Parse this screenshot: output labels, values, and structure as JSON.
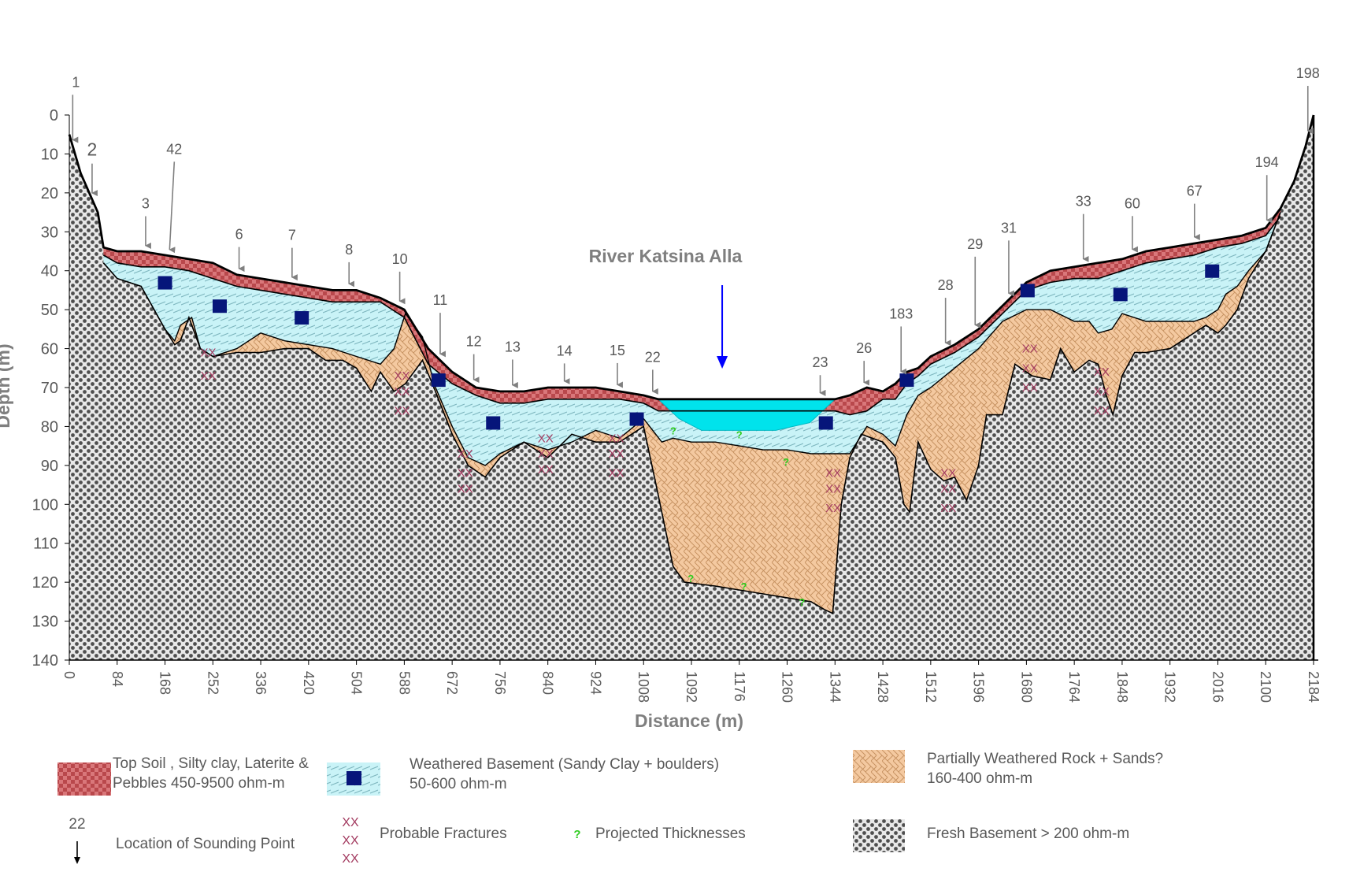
{
  "chart_data": {
    "type": "cross-section",
    "title": "River Katsina Alla",
    "xlabel": "Distance (m)",
    "ylabel": "Depth (m)",
    "xlim": [
      0,
      2184
    ],
    "ylim": [
      140,
      0
    ],
    "x_ticks": [
      "0",
      "84",
      "168",
      "252",
      "336",
      "420",
      "504",
      "588",
      "672",
      "756",
      "840",
      "924",
      "1008",
      "1092",
      "1176",
      "1260",
      "1344",
      "1428",
      "1512",
      "1596",
      "1680",
      "1764",
      "1848",
      "1932",
      "2016",
      "2100",
      "2184"
    ],
    "y_ticks": [
      "0",
      "10",
      "20",
      "30",
      "40",
      "50",
      "60",
      "70",
      "80",
      "90",
      "100",
      "110",
      "120",
      "130",
      "140"
    ],
    "layers": {
      "ground_surface": [
        [
          0,
          5
        ],
        [
          20,
          15
        ],
        [
          50,
          25
        ],
        [
          60,
          34
        ],
        [
          84,
          35
        ],
        [
          126,
          35
        ],
        [
          168,
          36
        ],
        [
          210,
          37
        ],
        [
          252,
          38
        ],
        [
          294,
          41
        ],
        [
          336,
          42
        ],
        [
          378,
          43
        ],
        [
          420,
          44
        ],
        [
          462,
          45
        ],
        [
          504,
          45
        ],
        [
          546,
          47
        ],
        [
          588,
          50
        ],
        [
          630,
          60
        ],
        [
          672,
          66
        ],
        [
          714,
          70
        ],
        [
          756,
          71
        ],
        [
          798,
          71
        ],
        [
          840,
          70
        ],
        [
          882,
          70
        ],
        [
          924,
          70
        ],
        [
          966,
          71
        ],
        [
          1008,
          72
        ],
        [
          1034,
          73
        ],
        [
          1344,
          73
        ],
        [
          1370,
          72
        ],
        [
          1400,
          70
        ],
        [
          1428,
          71
        ],
        [
          1450,
          69
        ],
        [
          1470,
          66
        ],
        [
          1490,
          65
        ],
        [
          1512,
          62
        ],
        [
          1554,
          59
        ],
        [
          1596,
          55
        ],
        [
          1638,
          49
        ],
        [
          1680,
          43
        ],
        [
          1722,
          40
        ],
        [
          1764,
          39
        ],
        [
          1806,
          38
        ],
        [
          1848,
          37
        ],
        [
          1890,
          35
        ],
        [
          1932,
          34
        ],
        [
          1974,
          33
        ],
        [
          2016,
          32
        ],
        [
          2058,
          31
        ],
        [
          2100,
          29
        ],
        [
          2126,
          24
        ],
        [
          2150,
          17
        ],
        [
          2170,
          8
        ],
        [
          2184,
          0
        ]
      ],
      "top_soil_base": [
        [
          60,
          36
        ],
        [
          84,
          38
        ],
        [
          126,
          39
        ],
        [
          168,
          39
        ],
        [
          210,
          40
        ],
        [
          252,
          42
        ],
        [
          294,
          44
        ],
        [
          336,
          45
        ],
        [
          378,
          46
        ],
        [
          420,
          47
        ],
        [
          462,
          48
        ],
        [
          504,
          48
        ],
        [
          546,
          48
        ],
        [
          588,
          52
        ],
        [
          630,
          64
        ],
        [
          672,
          69
        ],
        [
          714,
          72
        ],
        [
          756,
          74
        ],
        [
          798,
          74
        ],
        [
          840,
          73
        ],
        [
          882,
          73
        ],
        [
          924,
          73
        ],
        [
          966,
          73
        ],
        [
          1008,
          74
        ],
        [
          1034,
          76
        ],
        [
          1344,
          76
        ],
        [
          1370,
          77
        ],
        [
          1400,
          76
        ],
        [
          1428,
          73
        ],
        [
          1450,
          73
        ],
        [
          1470,
          69
        ],
        [
          1490,
          67
        ],
        [
          1512,
          64
        ],
        [
          1554,
          61
        ],
        [
          1596,
          57
        ],
        [
          1638,
          51
        ],
        [
          1680,
          45
        ],
        [
          1722,
          43
        ],
        [
          1764,
          42
        ],
        [
          1806,
          42
        ],
        [
          1848,
          40
        ],
        [
          1890,
          38
        ],
        [
          1932,
          37
        ],
        [
          1974,
          36
        ],
        [
          2016,
          34
        ],
        [
          2058,
          33
        ],
        [
          2100,
          31
        ],
        [
          2126,
          26
        ]
      ],
      "weathered_basement_base": [
        [
          60,
          38
        ],
        [
          84,
          42
        ],
        [
          126,
          44
        ],
        [
          168,
          55
        ],
        [
          185,
          58
        ],
        [
          195,
          54
        ],
        [
          215,
          52
        ],
        [
          230,
          60
        ],
        [
          252,
          62
        ],
        [
          294,
          60
        ],
        [
          336,
          56
        ],
        [
          378,
          58
        ],
        [
          420,
          59
        ],
        [
          462,
          60
        ],
        [
          504,
          62
        ],
        [
          546,
          64
        ],
        [
          570,
          60
        ],
        [
          590,
          51
        ],
        [
          620,
          57
        ],
        [
          640,
          69
        ],
        [
          672,
          80
        ],
        [
          700,
          88
        ],
        [
          730,
          90
        ],
        [
          756,
          87
        ],
        [
          798,
          84
        ],
        [
          840,
          86
        ],
        [
          882,
          84
        ],
        [
          924,
          81
        ],
        [
          966,
          83
        ],
        [
          1008,
          78
        ],
        [
          1040,
          84
        ],
        [
          1060,
          83
        ],
        [
          1092,
          84
        ],
        [
          1134,
          84
        ],
        [
          1176,
          85
        ],
        [
          1218,
          86
        ],
        [
          1260,
          86
        ],
        [
          1302,
          87
        ],
        [
          1344,
          87
        ],
        [
          1370,
          87
        ],
        [
          1400,
          80
        ],
        [
          1428,
          82
        ],
        [
          1450,
          85
        ],
        [
          1470,
          77
        ],
        [
          1490,
          72
        ],
        [
          1512,
          70
        ],
        [
          1554,
          65
        ],
        [
          1596,
          60
        ],
        [
          1638,
          53
        ],
        [
          1680,
          50
        ],
        [
          1722,
          50
        ],
        [
          1750,
          52
        ],
        [
          1764,
          53
        ],
        [
          1790,
          53
        ],
        [
          1806,
          56
        ],
        [
          1830,
          55
        ],
        [
          1848,
          51
        ],
        [
          1890,
          53
        ],
        [
          1932,
          53
        ],
        [
          1974,
          53
        ],
        [
          1995,
          52
        ],
        [
          2016,
          50
        ],
        [
          2030,
          46
        ],
        [
          2050,
          44
        ],
        [
          2070,
          40
        ],
        [
          2100,
          35
        ],
        [
          2126,
          25
        ]
      ],
      "partially_weathered_base": [
        [
          60,
          38
        ],
        [
          84,
          42
        ],
        [
          126,
          44
        ],
        [
          168,
          55
        ],
        [
          185,
          59
        ],
        [
          195,
          58
        ],
        [
          210,
          52
        ],
        [
          230,
          60
        ],
        [
          252,
          62
        ],
        [
          294,
          61
        ],
        [
          336,
          61
        ],
        [
          378,
          60
        ],
        [
          420,
          60
        ],
        [
          450,
          63
        ],
        [
          480,
          63
        ],
        [
          504,
          65
        ],
        [
          530,
          71
        ],
        [
          546,
          66
        ],
        [
          570,
          71
        ],
        [
          590,
          69
        ],
        [
          620,
          63
        ],
        [
          640,
          70
        ],
        [
          672,
          82
        ],
        [
          700,
          90
        ],
        [
          730,
          93
        ],
        [
          756,
          88
        ],
        [
          798,
          84
        ],
        [
          840,
          88
        ],
        [
          882,
          82
        ],
        [
          924,
          84
        ],
        [
          966,
          84
        ],
        [
          1008,
          80
        ],
        [
          1030,
          95
        ],
        [
          1060,
          116
        ],
        [
          1080,
          120
        ],
        [
          1134,
          121
        ],
        [
          1176,
          122
        ],
        [
          1218,
          123
        ],
        [
          1260,
          124
        ],
        [
          1302,
          125
        ],
        [
          1325,
          127
        ],
        [
          1340,
          128
        ],
        [
          1355,
          100
        ],
        [
          1370,
          88
        ],
        [
          1390,
          82
        ],
        [
          1428,
          84
        ],
        [
          1450,
          88
        ],
        [
          1465,
          100
        ],
        [
          1475,
          102
        ],
        [
          1490,
          84
        ],
        [
          1512,
          91
        ],
        [
          1535,
          94
        ],
        [
          1554,
          93
        ],
        [
          1575,
          99
        ],
        [
          1596,
          90
        ],
        [
          1610,
          77
        ],
        [
          1638,
          77
        ],
        [
          1660,
          64
        ],
        [
          1690,
          67
        ],
        [
          1722,
          68
        ],
        [
          1740,
          60
        ],
        [
          1764,
          66
        ],
        [
          1790,
          63
        ],
        [
          1806,
          64
        ],
        [
          1820,
          72
        ],
        [
          1832,
          77
        ],
        [
          1848,
          67
        ],
        [
          1870,
          61
        ],
        [
          1890,
          61
        ],
        [
          1932,
          60
        ],
        [
          1974,
          56
        ],
        [
          1995,
          54
        ],
        [
          2016,
          56
        ],
        [
          2030,
          54
        ],
        [
          2050,
          50
        ],
        [
          2070,
          42
        ],
        [
          2100,
          35
        ],
        [
          2126,
          25
        ]
      ],
      "river_water": [
        [
          1034,
          73
        ],
        [
          1070,
          78
        ],
        [
          1110,
          81
        ],
        [
          1176,
          81
        ],
        [
          1240,
          81
        ],
        [
          1300,
          79
        ],
        [
          1344,
          73
        ]
      ]
    },
    "river_marker_x": 1146,
    "sounding_points": [
      {
        "label": "1",
        "x": 6
      },
      {
        "label": "2",
        "x": 40
      },
      {
        "label": "3",
        "x": 134
      },
      {
        "label": "42",
        "x": 176
      },
      {
        "label": "6",
        "x": 298
      },
      {
        "label": "7",
        "x": 391
      },
      {
        "label": "8",
        "x": 491
      },
      {
        "label": "10",
        "x": 580
      },
      {
        "label": "11",
        "x": 651
      },
      {
        "label": "12",
        "x": 710
      },
      {
        "label": "13",
        "x": 778
      },
      {
        "label": "14",
        "x": 869
      },
      {
        "label": "15",
        "x": 962
      },
      {
        "label": "22",
        "x": 1024
      },
      {
        "label": "23",
        "x": 1318
      },
      {
        "label": "26",
        "x": 1395
      },
      {
        "label": "183",
        "x": 1460
      },
      {
        "label": "28",
        "x": 1538
      },
      {
        "label": "29",
        "x": 1590
      },
      {
        "label": "31",
        "x": 1649
      },
      {
        "label": "33",
        "x": 1780
      },
      {
        "label": "60",
        "x": 1866
      },
      {
        "label": "67",
        "x": 1975
      },
      {
        "label": "194",
        "x": 2102
      },
      {
        "label": "198",
        "x": 2174
      }
    ],
    "boulders": [
      [
        168,
        43
      ],
      [
        264,
        49
      ],
      [
        408,
        52
      ],
      [
        648,
        68
      ],
      [
        744,
        79
      ],
      [
        996,
        78
      ],
      [
        1328,
        79
      ],
      [
        1470,
        68
      ],
      [
        1682,
        45
      ],
      [
        1845,
        46
      ],
      [
        2006,
        40
      ]
    ],
    "fractures": [
      [
        244,
        61
      ],
      [
        244,
        67
      ],
      [
        584,
        67
      ],
      [
        584,
        71
      ],
      [
        584,
        76
      ],
      [
        695,
        87
      ],
      [
        695,
        92
      ],
      [
        695,
        96
      ],
      [
        836,
        83
      ],
      [
        836,
        87
      ],
      [
        836,
        91
      ],
      [
        960,
        83
      ],
      [
        960,
        87
      ],
      [
        960,
        92
      ],
      [
        1341,
        92
      ],
      [
        1341,
        96
      ],
      [
        1341,
        101
      ],
      [
        1543,
        92
      ],
      [
        1543,
        96
      ],
      [
        1543,
        101
      ],
      [
        1686,
        60
      ],
      [
        1686,
        65
      ],
      [
        1686,
        70
      ],
      [
        1812,
        66
      ],
      [
        1812,
        71
      ],
      [
        1812,
        76
      ]
    ],
    "projected": [
      [
        1060,
        81
      ],
      [
        1176,
        82
      ],
      [
        1258,
        89
      ],
      [
        1091,
        119
      ],
      [
        1184,
        121
      ],
      [
        1286,
        125
      ]
    ]
  },
  "legend": {
    "top_soil": "Top Soil , Silty clay, Laterite &\nPebbles 450-9500 ohm-m",
    "weathered": "Weathered Basement  (Sandy Clay + boulders)\n50-600 ohm-m",
    "partially": "Partially  Weathered Rock + Sands?\n160-400 ohm-m",
    "sounding_number": "22",
    "sounding_label": "Location of Sounding Point",
    "fracture_symbol": "XX",
    "fracture_label": "Probable Fractures",
    "projected_symbol": "?",
    "projected_label": "Projected Thicknesses",
    "fresh": "Fresh Basement  > 200 ohm-m"
  },
  "colors": {
    "top_soil": "#d9777a",
    "top_soil_check": "#b9484c",
    "weathered": "#c9f3f7",
    "weathered_hatch": "#7fb7c0",
    "partially": "#f4c9a0",
    "partially_lines": "#c48f5e",
    "fresh_light": "#e8e8e8",
    "fresh_dark": "#4f4f4f",
    "river": "#00e3ec",
    "boulder": "#06157a",
    "fracture": "#a33b60",
    "projected": "#2ecc1f",
    "arrow": "#808080",
    "river_arrow": "#0000ff",
    "axis_text": "#595959"
  }
}
